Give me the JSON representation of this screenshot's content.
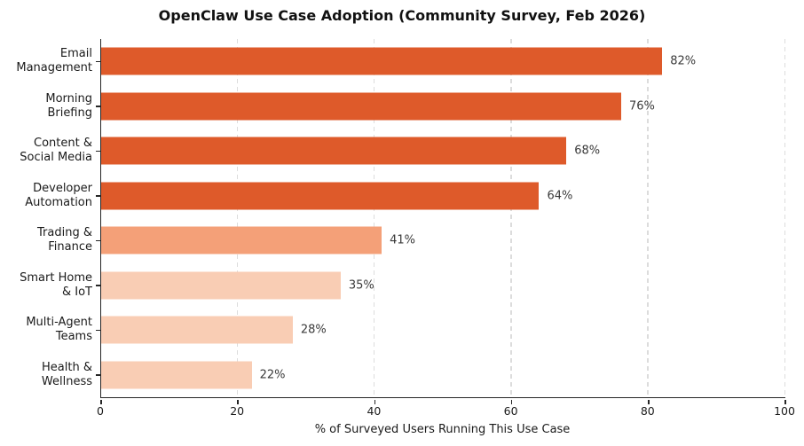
{
  "chart_data": {
    "type": "bar",
    "orientation": "horizontal",
    "title": "OpenClaw Use Case Adoption (Community Survey, Feb 2026)",
    "categories": [
      "Email\nManagement",
      "Morning\nBriefing",
      "Content &\nSocial Media",
      "Developer\nAutomation",
      "Trading &\nFinance",
      "Smart Home\n& IoT",
      "Multi-Agent\nTeams",
      "Health &\nWellness"
    ],
    "values": [
      82,
      76,
      68,
      64,
      41,
      35,
      28,
      22
    ],
    "value_labels": [
      "82%",
      "76%",
      "68%",
      "64%",
      "41%",
      "35%",
      "28%",
      "22%"
    ],
    "bar_colors": [
      "#de5a2a",
      "#de5a2a",
      "#de5a2a",
      "#de5a2a",
      "#f4a078",
      "#f9cdb4",
      "#f9cdb4",
      "#f9cdb4"
    ],
    "xlabel": "% of Surveyed Users Running This Use Case",
    "xlim": [
      0,
      100
    ],
    "xticks": [
      "0",
      "20",
      "40",
      "60",
      "80",
      "100"
    ],
    "xtick_values": [
      0,
      20,
      40,
      60,
      80,
      100
    ],
    "grid": {
      "vertical": true,
      "style": "dashed",
      "color": "#dcdcdc"
    },
    "legend": null,
    "colors": {
      "axis": "#262626",
      "label_text": "#1a1a1a",
      "value_label_text": "#3a3a3a",
      "background": "#ffffff"
    }
  }
}
